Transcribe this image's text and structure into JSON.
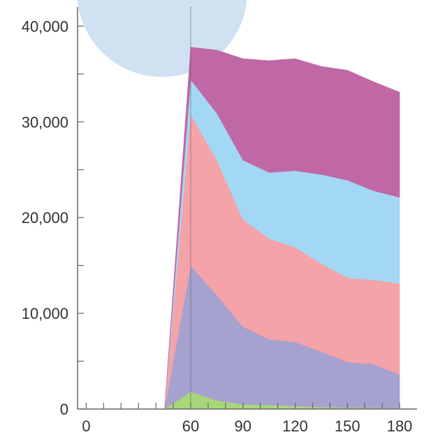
{
  "chart_data": {
    "type": "area",
    "stacked": true,
    "x_ticks": [
      0,
      60,
      90,
      120,
      150,
      180
    ],
    "y_ticks": [
      0,
      10000,
      20000,
      30000,
      40000
    ],
    "x_tick_labels": [
      "0",
      "60",
      "90",
      "120",
      "150",
      "180"
    ],
    "y_tick_labels": [
      "0",
      "10,000",
      "20,000",
      "30,000",
      "40,000"
    ],
    "xlim": [
      -5,
      190
    ],
    "ylim": [
      0,
      42000
    ],
    "x": [
      45,
      60,
      75,
      90,
      105,
      120,
      135,
      150,
      165,
      180
    ],
    "series": [
      {
        "color": "#a8d77a",
        "values": [
          0,
          1800,
          900,
          500,
          400,
          300,
          200,
          150,
          120,
          100
        ]
      },
      {
        "color": "#a6a2cf",
        "values": [
          0,
          13200,
          11000,
          8100,
          6900,
          6700,
          5800,
          4750,
          4580,
          3500
        ]
      },
      {
        "color": "#f4a3a8",
        "values": [
          0,
          15800,
          14100,
          11200,
          10500,
          9900,
          9200,
          8800,
          8800,
          9500
        ]
      },
      {
        "color": "#a3d8f4",
        "values": [
          0,
          3600,
          4900,
          6200,
          6900,
          8000,
          9300,
          10200,
          9300,
          9000
        ]
      },
      {
        "color": "#c068a6",
        "values": [
          0,
          3400,
          6600,
          10600,
          11700,
          11700,
          11300,
          11500,
          11400,
          11000
        ]
      }
    ],
    "vline_x": 60,
    "grid": false,
    "legend": "none"
  }
}
